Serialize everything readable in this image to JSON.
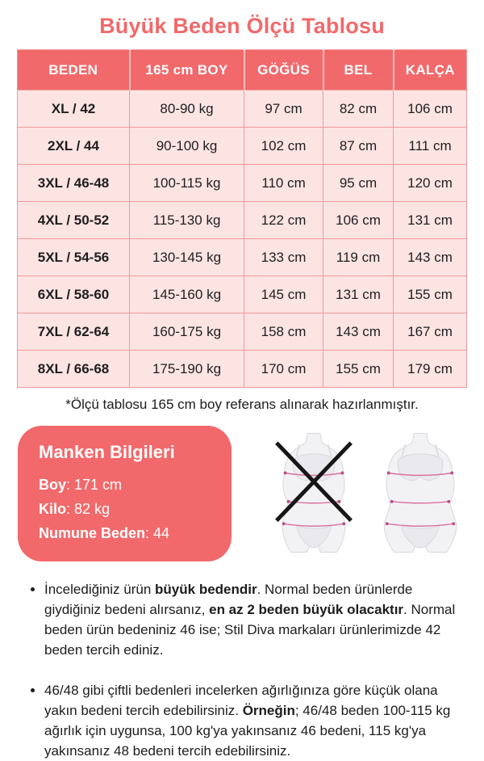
{
  "title": "Büyük Beden Ölçü Tablosu",
  "colors": {
    "coral": "#F2696B",
    "table_cell_bg": "#FCE4E3",
    "table_border": "#F09A9A",
    "measure_line_pink": "#D9719F",
    "measure_dot_pink": "#BE4E86",
    "x_mark_black": "#161616"
  },
  "table": {
    "headers": [
      "BEDEN",
      "165 cm BOY",
      "GÖĞÜS",
      "BEL",
      "KALÇA"
    ],
    "rows": [
      [
        "XL / 42",
        "80-90 kg",
        "97 cm",
        "82 cm",
        "106 cm"
      ],
      [
        "2XL / 44",
        "90-100 kg",
        "102 cm",
        "87 cm",
        "111 cm"
      ],
      [
        "3XL / 46-48",
        "100-115 kg",
        "110 cm",
        "95 cm",
        "120 cm"
      ],
      [
        "4XL / 50-52",
        "115-130 kg",
        "122 cm",
        "106 cm",
        "131 cm"
      ],
      [
        "5XL / 54-56",
        "130-145 kg",
        "133 cm",
        "119 cm",
        "143 cm"
      ],
      [
        "6XL / 58-60",
        "145-160 kg",
        "145 cm",
        "131 cm",
        "155 cm"
      ],
      [
        "7XL / 62-64",
        "160-175 kg",
        "158 cm",
        "143 cm",
        "167 cm"
      ],
      [
        "8XL / 66-68",
        "175-190 kg",
        "170 cm",
        "155 cm",
        "179 cm"
      ]
    ]
  },
  "footnote": "*Ölçü tablosu 165 cm boy referans alınarak hazırlanmıştır.",
  "model_info": {
    "title": "Manken Bilgileri",
    "lines": [
      [
        {
          "t": "Boy",
          "b": true
        },
        {
          "t": ": 171 cm",
          "b": false
        }
      ],
      [
        {
          "t": "Kilo",
          "b": true
        },
        {
          "t": ": 82 kg",
          "b": false
        }
      ],
      [
        {
          "t": "Numune Beden",
          "b": true
        },
        {
          "t": ": 44",
          "b": false
        }
      ]
    ]
  },
  "figures": {
    "left_icon": "crossed-out-slim-body-icon",
    "right_icon": "plus-size-body-icon"
  },
  "notes": [
    [
      {
        "t": "İncelediğiniz ürün ",
        "b": false
      },
      {
        "t": "büyük bedendir",
        "b": true
      },
      {
        "t": ". Normal beden ürünlerde giydiğiniz bedeni alırsanız, ",
        "b": false
      },
      {
        "t": "en az 2 beden büyük olacaktır",
        "b": true
      },
      {
        "t": ". Normal beden ürün bedeniniz 46 ise; Stil Diva markaları ürünlerimizde 42 beden tercih ediniz.",
        "b": false
      }
    ],
    [
      {
        "t": "46/48 gibi çiftli bedenleri incelerken ağırlığınıza göre küçük olana yakın bedeni tercih edebilirsiniz. ",
        "b": false
      },
      {
        "t": "Örneğin",
        "b": true
      },
      {
        "t": "; 46/48 beden 100-115 kg ağırlık için uygunsa, 100 kg'ya yakınsanız 46 bedeni, 115 kg'ya yakınsanız 48 bedeni tercih edebilirsiniz.",
        "b": false
      }
    ]
  ]
}
